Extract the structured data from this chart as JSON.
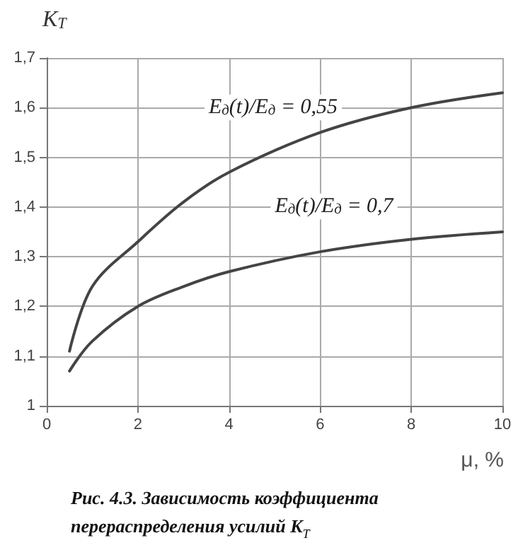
{
  "chart_data": {
    "type": "line",
    "xlabel": "μ, %",
    "ylabel": "K$_{Т}$",
    "x": [
      0.5,
      1,
      2,
      3,
      4,
      6,
      8,
      10
    ],
    "series": [
      {
        "color": "#444444",
        "values": [
          1.11,
          1.24,
          1.33,
          1.41,
          1.47,
          1.55,
          1.6,
          1.63
        ]
      },
      {
        "color": "#444444",
        "values": [
          1.07,
          1.13,
          1.2,
          1.24,
          1.27,
          1.31,
          1.335,
          1.35
        ]
      }
    ],
    "xlim": [
      0,
      10
    ],
    "xticks": [
      0,
      2,
      4,
      6,
      8,
      10
    ],
    "ylim": [
      1,
      1.7
    ],
    "yticks": [
      1,
      {
        "value": 1.1,
        "label": "1,1"
      },
      {
        "value": 1.2,
        "label": "1,2"
      },
      {
        "value": 1.3,
        "label": "1,3"
      },
      {
        "value": 1.4,
        "label": "1,4"
      },
      {
        "value": 1.5,
        "label": "1,5"
      },
      {
        "value": 1.6,
        "label": "1,6"
      },
      {
        "value": 1.7,
        "label": "1,7"
      }
    ],
    "grid": true,
    "marker": "none",
    "line_style": "solid",
    "annotations": [
      "E$_{д}$(t)/E$_{д}$ = 0,55",
      "E$_{д}$(t)/E$_{д}$ = 0,7",
      "Рис. 4.3. Зависимость коэффициента\nперераспределения усилий K$_{Т}$"
    ]
  }
}
